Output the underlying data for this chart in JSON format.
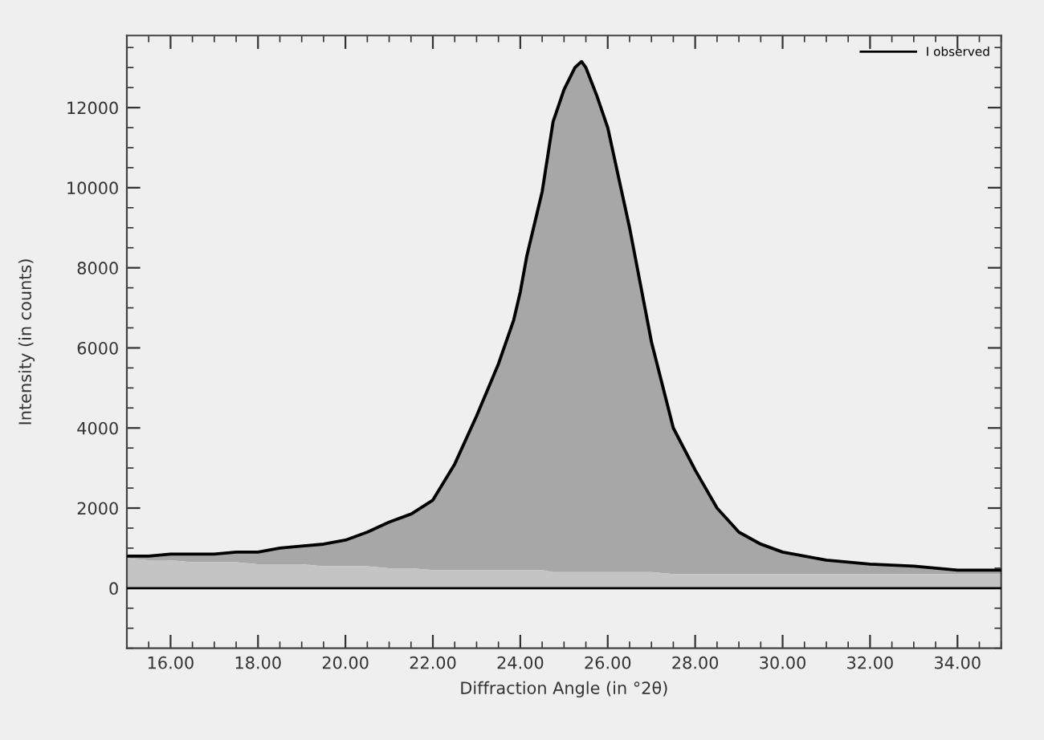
{
  "chart_data": {
    "type": "line",
    "xlabel": "Diffraction Angle (in °2θ)",
    "ylabel": "Intensity (in counts)",
    "x": [
      15,
      15.5,
      16,
      16.5,
      17,
      17.5,
      18,
      18.5,
      19,
      19.5,
      20,
      20.5,
      21,
      21.5,
      22,
      22.5,
      23,
      23.5,
      23.85,
      24,
      24.15,
      24.5,
      24.75,
      25,
      25.25,
      25.4,
      25.5,
      25.75,
      26,
      26.5,
      27,
      27.5,
      28,
      28.5,
      29,
      29.5,
      30,
      30.5,
      31,
      31.5,
      32,
      33,
      34,
      35
    ],
    "series": [
      {
        "name": "I observed",
        "color": "#000000",
        "values": [
          800,
          800,
          850,
          850,
          850,
          900,
          900,
          1000,
          1050,
          1100,
          1200,
          1400,
          1650,
          1850,
          2200,
          3100,
          4300,
          5600,
          6700,
          7400,
          8300,
          9900,
          11650,
          12450,
          13000,
          13150,
          13000,
          12300,
          11500,
          9000,
          6150,
          4000,
          2950,
          2000,
          1400,
          1100,
          900,
          800,
          700,
          650,
          600,
          550,
          450,
          450
        ],
        "upper": [
          800,
          800,
          850,
          850,
          850,
          900,
          900,
          1000,
          1050,
          1100,
          1200,
          1400,
          1650,
          1850,
          2200,
          3100,
          4300,
          5600,
          6700,
          7400,
          8300,
          9900,
          11650,
          12450,
          13000,
          13150,
          13000,
          12300,
          11500,
          9000,
          6150,
          4000,
          2950,
          2000,
          1400,
          1100,
          900,
          800,
          700,
          650,
          600,
          550,
          450,
          450
        ],
        "lower": [
          750,
          700,
          700,
          650,
          650,
          650,
          600,
          600,
          600,
          550,
          550,
          550,
          500,
          500,
          450,
          450,
          450,
          450,
          450,
          450,
          450,
          450,
          400,
          400,
          400,
          400,
          400,
          400,
          400,
          400,
          400,
          350,
          350,
          350,
          350,
          350,
          350,
          350,
          350,
          350,
          350,
          350,
          350,
          350
        ]
      },
      {
        "type": "area",
        "color": "#c4c4c4",
        "values": [
          750,
          700,
          700,
          650,
          650,
          650,
          600,
          600,
          600,
          550,
          550,
          550,
          500,
          500,
          450,
          450,
          450,
          450,
          450,
          450,
          450,
          450,
          400,
          400,
          400,
          400,
          400,
          400,
          400,
          400,
          400,
          350,
          350,
          350,
          350,
          350,
          350,
          350,
          350,
          350,
          350,
          350,
          350,
          350
        ]
      }
    ],
    "xlim": [
      15,
      35
    ],
    "xticks": [
      {
        "value": 16,
        "label": "16.00"
      },
      {
        "value": 18,
        "label": "18.00"
      },
      {
        "value": 20,
        "label": "20.00"
      },
      {
        "value": 22,
        "label": "22.00"
      },
      {
        "value": 24,
        "label": "24.00"
      },
      {
        "value": 26,
        "label": "26.00"
      },
      {
        "value": 28,
        "label": "28.00"
      },
      {
        "value": 30,
        "label": "30.00"
      },
      {
        "value": 32,
        "label": "32.00"
      },
      {
        "value": 34,
        "label": "34.00"
      }
    ],
    "ylim": [
      -1500,
      13800
    ],
    "yticks": [
      0,
      2000,
      4000,
      6000,
      8000,
      10000,
      12000
    ],
    "ref_lines": [
      {
        "axis": "y",
        "value": 0,
        "color": "#000000"
      }
    ],
    "grid": false,
    "legend": "top right",
    "marker": "none",
    "line_style": "solid"
  }
}
